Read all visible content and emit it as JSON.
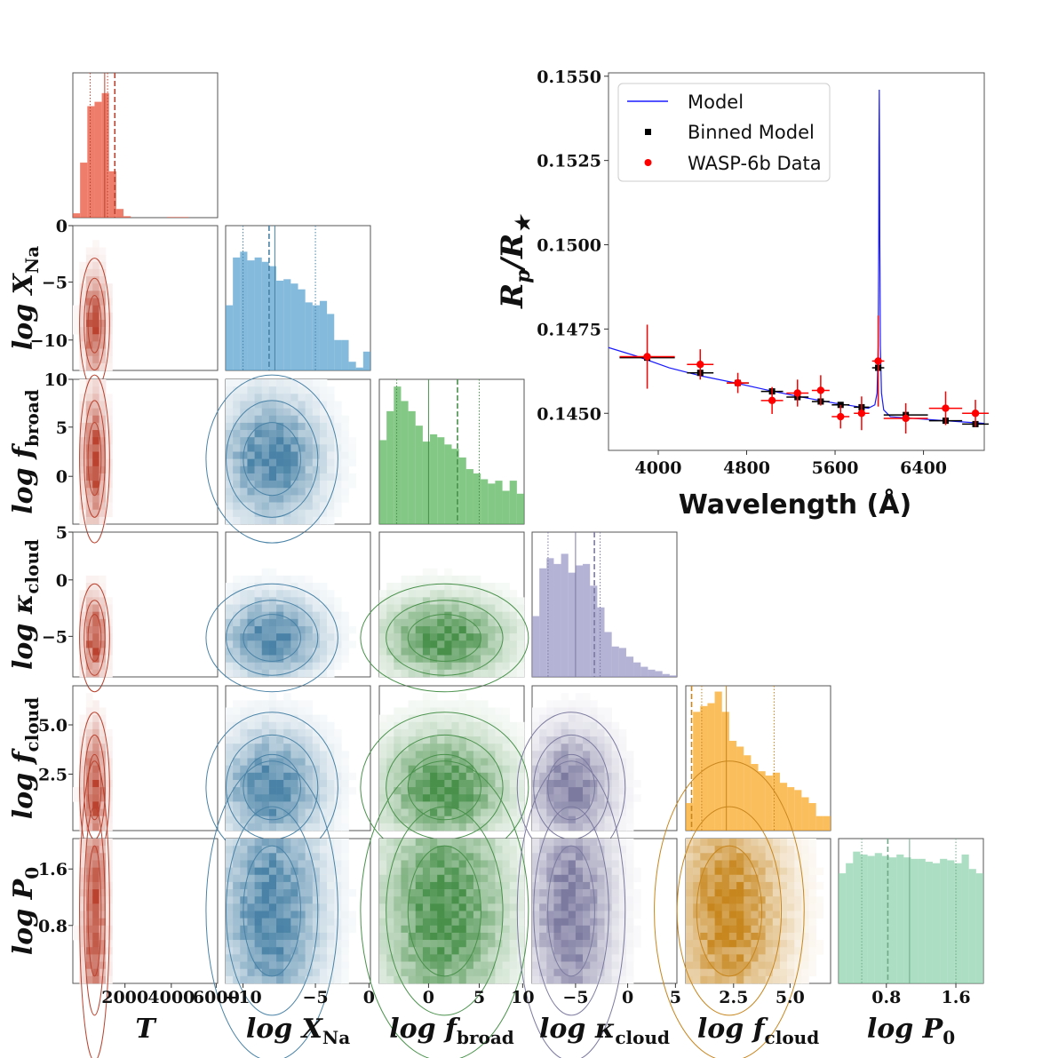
{
  "chart_data": [
    {
      "type": "corner",
      "parameters": [
        {
          "key": "T",
          "label_main": "T",
          "label_sub": "",
          "ticks": [
            "2000",
            "4000",
            "6000"
          ],
          "color": "#e8533a",
          "hist": [
            0.03,
            0.38,
            0.77,
            0.8,
            0.86,
            0.32,
            0.06,
            0.01,
            0.0,
            0.0,
            0.0,
            0.0,
            0.0,
            0.004,
            0.004,
            0.004,
            0.0,
            0.0,
            0.0,
            0.0
          ],
          "dashed": 0.29,
          "solid": 0.22,
          "dotted": [
            0.12,
            0.24
          ]
        },
        {
          "key": "Na",
          "label_main": "log X",
          "label_sub": "Na",
          "ticks": [
            "−10",
            "−5",
            "0"
          ],
          "color": "#5ba3d0",
          "hist": [
            0.45,
            0.78,
            0.82,
            0.76,
            0.78,
            0.75,
            0.72,
            0.62,
            0.63,
            0.6,
            0.56,
            0.47,
            0.45,
            0.48,
            0.39,
            0.21,
            0.21,
            0.06,
            0.02,
            0.13
          ],
          "dashed": 0.3,
          "solid": 0.34,
          "dotted": [
            0.12,
            0.62
          ]
        },
        {
          "key": "fb",
          "label_main": "log f",
          "label_sub": "broad",
          "ticks": [
            "0",
            "5",
            "10"
          ],
          "color": "#5bb55e",
          "hist": [
            0.58,
            0.78,
            0.95,
            0.85,
            0.78,
            0.68,
            0.57,
            0.62,
            0.6,
            0.55,
            0.52,
            0.46,
            0.38,
            0.35,
            0.31,
            0.28,
            0.3,
            0.23,
            0.3,
            0.21
          ],
          "dashed": 0.54,
          "solid": 0.34,
          "dotted": [
            0.12,
            0.69
          ]
        },
        {
          "key": "kc",
          "label_main": "log κ",
          "label_sub": "cloud",
          "ticks": [
            "−5",
            "0",
            "5"
          ],
          "color": "#9b98c7",
          "hist": [
            0.42,
            0.75,
            0.82,
            0.78,
            0.85,
            0.72,
            0.77,
            0.78,
            0.63,
            0.48,
            0.31,
            0.21,
            0.2,
            0.14,
            0.1,
            0.07,
            0.05,
            0.04,
            0.02,
            0.01
          ],
          "dashed": 0.43,
          "solid": 0.3,
          "dotted": [
            0.11,
            0.47
          ]
        },
        {
          "key": "fc",
          "label_main": "log f",
          "label_sub": "cloud",
          "ticks": [
            "2.5",
            "5.0"
          ],
          "color": "#f9a825",
          "hist": [
            0.19,
            0.82,
            0.86,
            0.88,
            0.96,
            0.82,
            0.62,
            0.58,
            0.52,
            0.46,
            0.41,
            0.38,
            0.4,
            0.33,
            0.3,
            0.28,
            0.23,
            0.19,
            0.1,
            0.1
          ],
          "dashed": 0.04,
          "solid": 0.28,
          "dotted": [
            0.11,
            0.61
          ]
        },
        {
          "key": "P0",
          "label_main": "log P",
          "label_sub": "0",
          "ticks": [
            "0.8",
            "1.6"
          ],
          "color": "#8fd3ae",
          "hist": [
            0.76,
            0.83,
            0.91,
            0.89,
            0.88,
            0.9,
            0.88,
            0.87,
            0.89,
            0.87,
            0.86,
            0.86,
            0.84,
            0.83,
            0.86,
            0.85,
            0.83,
            0.89,
            0.79,
            0.76
          ],
          "dashed": 0.34,
          "solid": 0.49,
          "dotted": [
            0.16,
            0.81
          ]
        }
      ],
      "row_ticks": [
        [],
        [
          "0",
          "−5",
          "−10"
        ],
        [
          "10",
          "5",
          "0"
        ],
        [
          "5",
          "0",
          "−5"
        ],
        [
          "5.0",
          "2.5"
        ],
        [
          "1.6",
          "0.8"
        ]
      ]
    },
    {
      "type": "line",
      "xlabel": "Wavelength (Å)",
      "ylabel": "R_p / R_★",
      "xlim": [
        3550,
        6950
      ],
      "ylim": [
        0.1439,
        0.1551
      ],
      "xticks": [
        "4000",
        "4800",
        "5600",
        "6400"
      ],
      "yticks": [
        "0.1550",
        "0.1525",
        "0.1500",
        "0.1475",
        "0.1450"
      ],
      "legend_position": "top-left",
      "legend": [
        "Model",
        "Binned Model",
        "WASP-6b Data"
      ],
      "series": [
        {
          "name": "Model",
          "color": "#1a1aff",
          "x": [
            3550,
            3800,
            4100,
            4400,
            4700,
            5000,
            5300,
            5600,
            5800,
            5900,
            5960,
            5980,
            5990,
            5995,
            5997,
            6000,
            6003,
            6005,
            6010,
            6020,
            6040,
            6100,
            6300,
            6600,
            6950
          ],
          "y": [
            0.14695,
            0.1467,
            0.14635,
            0.1461,
            0.1459,
            0.14568,
            0.14548,
            0.1453,
            0.1452,
            0.14515,
            0.14525,
            0.1456,
            0.147,
            0.15,
            0.153,
            0.1546,
            0.1525,
            0.15,
            0.147,
            0.1456,
            0.1451,
            0.1449,
            0.14485,
            0.14478,
            0.1447
          ]
        },
        {
          "name": "Binned Model",
          "color": "#000000",
          "x": [
            3900,
            4380,
            4720,
            5030,
            5260,
            5470,
            5650,
            5840,
            5990,
            6240,
            6600,
            6870
          ],
          "y": [
            0.14665,
            0.1462,
            0.1459,
            0.14565,
            0.14548,
            0.14535,
            0.14525,
            0.14518,
            0.14635,
            0.14495,
            0.14478,
            0.14468
          ],
          "xerr": [
            250,
            120,
            100,
            100,
            100,
            80,
            80,
            70,
            55,
            200,
            150,
            120
          ]
        },
        {
          "name": "WASP-6b Data",
          "color": "#ff0000",
          "x": [
            3900,
            4380,
            4720,
            5030,
            5260,
            5470,
            5650,
            5840,
            5990,
            6240,
            6600,
            6870
          ],
          "y": [
            0.14668,
            0.14645,
            0.1459,
            0.14538,
            0.1456,
            0.14568,
            0.1449,
            0.145,
            0.14655,
            0.14485,
            0.14515,
            0.145
          ],
          "yerr": [
            0.00095,
            0.00045,
            0.0003,
            0.0004,
            0.0004,
            0.00045,
            0.00035,
            0.0005,
            0.00135,
            0.00045,
            0.0005,
            0.0004
          ]
        }
      ]
    }
  ]
}
